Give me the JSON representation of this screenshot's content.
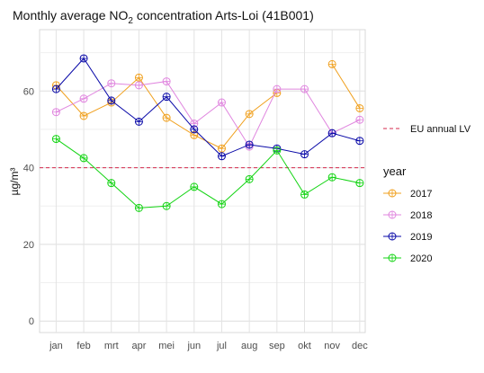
{
  "chart_data": {
    "type": "line",
    "title_prefix": "Monthly average NO",
    "title_sub": "2",
    "title_suffix": " concentration Arts-Loi (41B001)",
    "ylabel": "µg/m³",
    "xlabel": "",
    "categories": [
      "jan",
      "feb",
      "mrt",
      "apr",
      "mei",
      "jun",
      "jul",
      "aug",
      "sep",
      "okt",
      "nov",
      "dec"
    ],
    "ylim": [
      -3,
      76
    ],
    "yticks": [
      0,
      20,
      40,
      60
    ],
    "grid": true,
    "legend_position": "right",
    "series": [
      {
        "name": "2017",
        "color": "#f0a01e",
        "values": [
          61.5,
          53.5,
          57,
          63.5,
          53,
          48.5,
          45,
          54,
          59.5,
          null,
          67,
          55.5
        ]
      },
      {
        "name": "2018",
        "color": "#e086df",
        "values": [
          54.5,
          58,
          62,
          61.5,
          62.5,
          51.5,
          57,
          45.5,
          60.5,
          60.5,
          49,
          52.5
        ]
      },
      {
        "name": "2019",
        "color": "#0a0aa8",
        "values": [
          60.5,
          68.5,
          57.5,
          52,
          58.5,
          50,
          43,
          46,
          45,
          43.5,
          49,
          47
        ]
      },
      {
        "name": "2020",
        "color": "#14d414",
        "values": [
          47.5,
          42.5,
          36,
          29.5,
          30,
          35,
          30.5,
          37,
          44.5,
          33,
          37.5,
          36
        ]
      }
    ],
    "reference_line": {
      "name": "EU annual LV",
      "value": 40,
      "color": "#d62a4e",
      "style": "dashed"
    },
    "legend_title": "year"
  }
}
